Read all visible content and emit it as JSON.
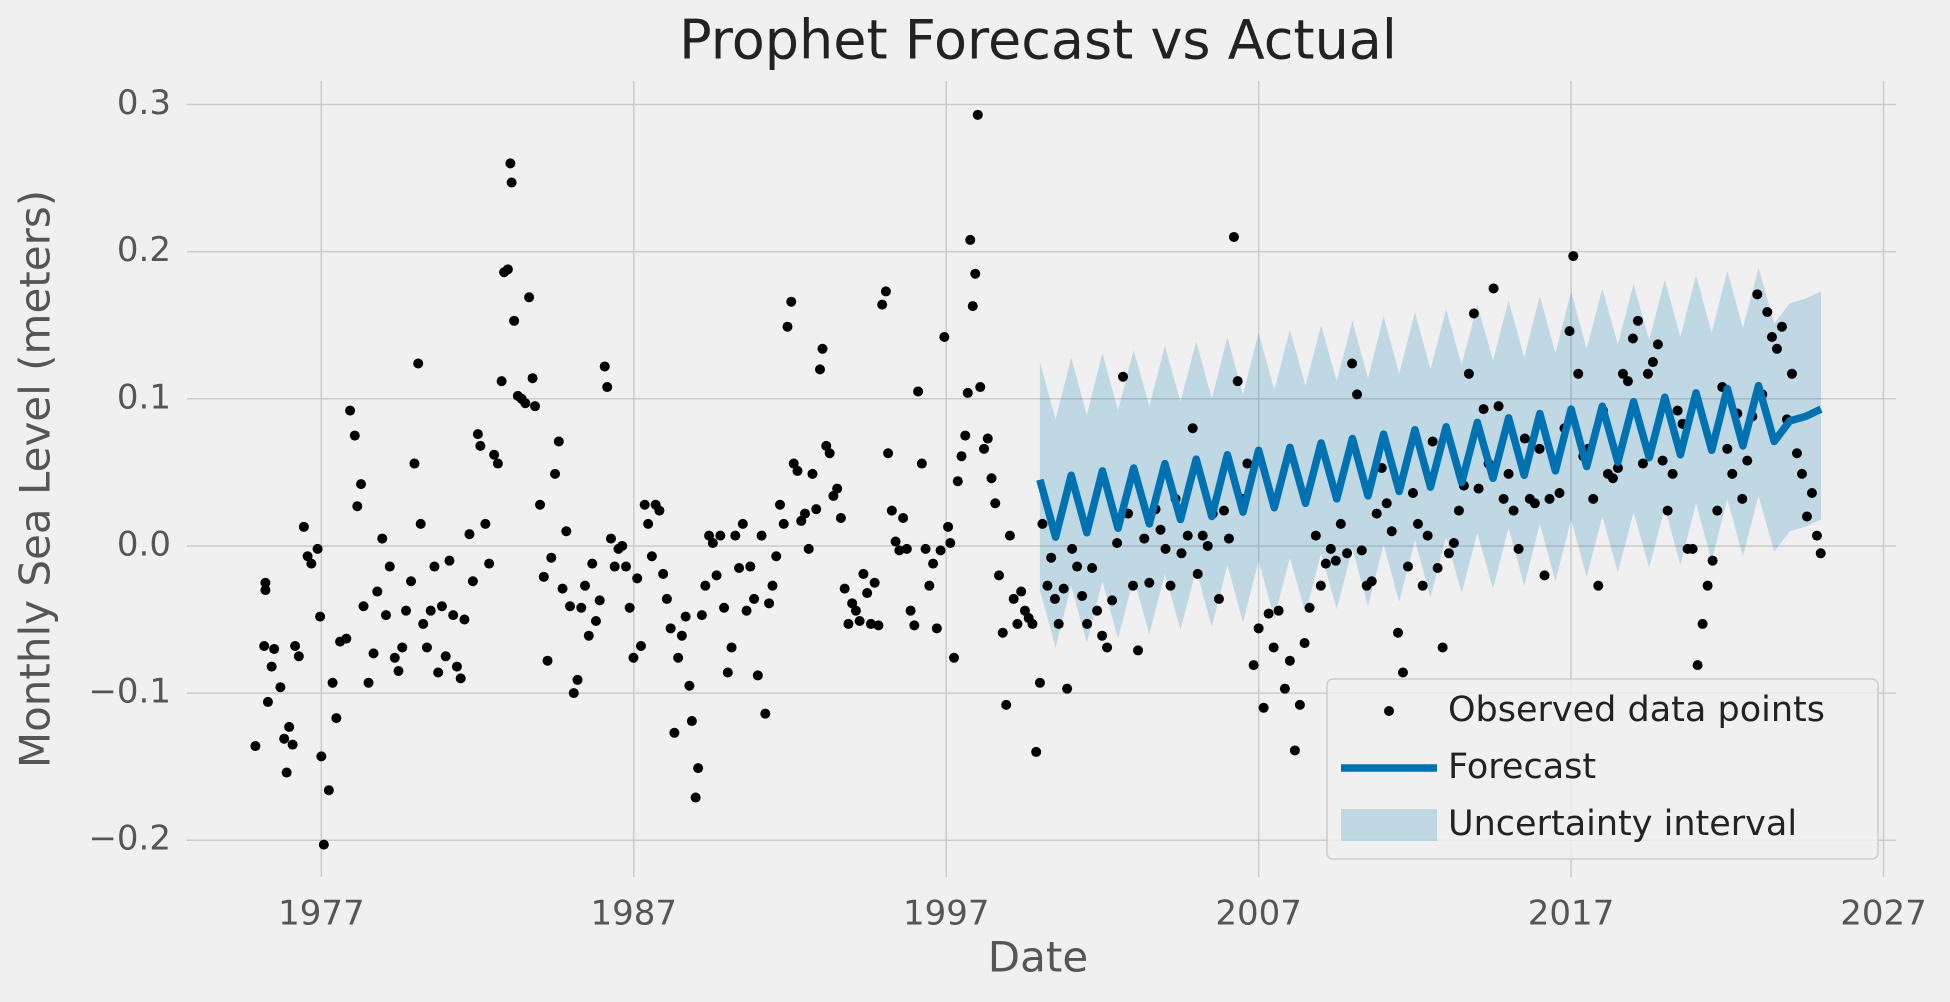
{
  "chart_data": {
    "type": "line",
    "title": "Prophet Forecast vs Actual",
    "x_label": "Date",
    "y_label": "Monthly Sea Level (meters)",
    "xlim": [
      1972.7,
      2027.4
    ],
    "ylim": [
      -0.225,
      0.316
    ],
    "xticks": [
      1977,
      1987,
      1997,
      2007,
      2017,
      2027
    ],
    "yticks": [
      {
        "value": -0.2,
        "label": "−0.2"
      },
      {
        "value": -0.1,
        "label": "−0.1"
      },
      {
        "value": 0,
        "label": "0.0"
      },
      0.1,
      0.2,
      0.3
    ],
    "grid": true,
    "legend": "lower right",
    "series": [
      {
        "name": "Observed data points",
        "style": "points",
        "color": "#000000",
        "x": [
          1974.89,
          1975.17,
          1975.21,
          1975.21,
          1975.29,
          1975.41,
          1975.49,
          1975.69,
          1975.81,
          1975.89,
          1975.97,
          1976.08,
          1976.16,
          1976.28,
          1976.44,
          1976.56,
          1976.68,
          1976.88,
          1976.96,
          1977.08,
          1977.0,
          1977.24,
          1977.36,
          1977.48,
          1977.6,
          1977.8,
          1977.92,
          1978.07,
          1978.15,
          1978.27,
          1978.35,
          1978.51,
          1978.67,
          1978.79,
          1978.95,
          1979.07,
          1979.19,
          1979.35,
          1979.47,
          1979.59,
          1979.71,
          1979.87,
          1979.98,
          1980.1,
          1980.18,
          1980.26,
          1980.38,
          1980.5,
          1980.62,
          1980.74,
          1980.86,
          1980.98,
          1981.1,
          1981.22,
          1981.34,
          1981.46,
          1981.58,
          1981.74,
          1981.85,
          1982.01,
          1982.09,
          1982.25,
          1982.37,
          1982.53,
          1982.65,
          1982.77,
          1982.85,
          1982.97,
          1983.05,
          1983.09,
          1983.17,
          1983.29,
          1983.41,
          1983.53,
          1983.65,
          1983.76,
          1983.84,
          1984.0,
          1984.12,
          1984.24,
          1984.36,
          1984.48,
          1984.6,
          1984.72,
          1984.84,
          1984.96,
          1985.08,
          1985.2,
          1985.32,
          1985.44,
          1985.56,
          1985.67,
          1985.79,
          1985.91,
          1986.07,
          1986.15,
          1986.27,
          1986.39,
          1986.51,
          1986.63,
          1986.75,
          1986.87,
          1986.99,
          1987.11,
          1987.23,
          1987.35,
          1987.46,
          1987.58,
          1987.7,
          1987.82,
          1987.94,
          1988.06,
          1988.18,
          1988.3,
          1988.42,
          1988.54,
          1988.66,
          1988.78,
          1988.86,
          1988.98,
          1989.06,
          1989.18,
          1989.29,
          1989.41,
          1989.53,
          1989.65,
          1989.77,
          1989.89,
          1990.01,
          1990.13,
          1990.25,
          1990.37,
          1990.49,
          1990.61,
          1990.73,
          1990.85,
          1990.97,
          1991.09,
          1991.21,
          1991.33,
          1991.44,
          1991.56,
          1991.68,
          1991.8,
          1991.92,
          1992.04,
          1992.12,
          1992.24,
          1992.36,
          1992.48,
          1992.6,
          1992.72,
          1992.84,
          1992.96,
          1993.04,
          1993.16,
          1993.27,
          1993.39,
          1993.51,
          1993.63,
          1993.75,
          1993.87,
          1993.99,
          1994.11,
          1994.23,
          1994.35,
          1994.47,
          1994.59,
          1994.71,
          1994.83,
          1994.95,
          1995.07,
          1995.14,
          1995.26,
          1995.38,
          1995.5,
          1995.62,
          1995.74,
          1995.86,
          1995.98,
          1996.1,
          1996.22,
          1996.34,
          1996.46,
          1996.58,
          1996.7,
          1996.82,
          1996.94,
          1997.06,
          1997.13,
          1997.25,
          1997.37,
          1997.49,
          1997.61,
          1997.69,
          1997.77,
          1997.85,
          1997.93,
          1998.01,
          1998.09,
          1998.21,
          1998.33,
          1998.45,
          1998.57,
          1998.69,
          1998.81,
          1998.92,
          1999.04,
          1999.16,
          1999.28,
          1999.4,
          1999.52,
          1999.64,
          1999.76,
          1999.88,
          2000.0,
          2000.08,
          2000.24,
          2000.36,
          2000.48,
          2000.6,
          2000.76,
          2000.87,
          2001.03,
          2001.19,
          2001.35,
          2001.51,
          2001.67,
          2001.83,
          2001.99,
          2002.15,
          2002.31,
          2002.47,
          2002.66,
          2002.82,
          2002.98,
          2003.14,
          2003.34,
          2003.5,
          2003.7,
          2003.86,
          2004.02,
          2004.18,
          2004.34,
          2004.53,
          2004.73,
          2004.89,
          2005.05,
          2005.21,
          2005.37,
          2005.53,
          2005.73,
          2005.89,
          2006.05,
          2006.21,
          2006.33,
          2006.49,
          2006.64,
          2006.84,
          2007.0,
          2007.16,
          2007.32,
          2007.48,
          2007.64,
          2007.84,
          2008.0,
          2008.16,
          2008.32,
          2008.47,
          2008.63,
          2008.83,
          2008.99,
          2009.15,
          2009.31,
          2009.47,
          2009.63,
          2009.83,
          2009.99,
          2010.15,
          2010.3,
          2010.46,
          2010.62,
          2010.78,
          2010.94,
          2011.1,
          2011.26,
          2011.46,
          2011.62,
          2011.78,
          2011.94,
          2012.1,
          2012.25,
          2012.41,
          2012.57,
          2012.73,
          2012.89,
          2013.09,
          2013.25,
          2013.41,
          2013.57,
          2013.73,
          2013.89,
          2014.04,
          2014.2,
          2014.36,
          2014.52,
          2014.68,
          2014.84,
          2015.0,
          2015.16,
          2015.32,
          2015.52,
          2015.68,
          2015.84,
          2015.99,
          2016.15,
          2016.31,
          2016.47,
          2016.63,
          2016.79,
          2016.95,
          2017.07,
          2017.23,
          2017.39,
          2017.55,
          2017.71,
          2017.87,
          2018.02,
          2018.18,
          2018.34,
          2018.5,
          2018.66,
          2018.82,
          2018.98,
          2019.14,
          2019.3,
          2019.46,
          2019.62,
          2019.78,
          2019.93,
          2020.09,
          2020.25,
          2020.41,
          2020.57,
          2020.73,
          2020.89,
          2021.05,
          2021.21,
          2021.37,
          2021.53,
          2021.68,
          2021.84,
          2022.0,
          2022.16,
          2022.32,
          2022.48,
          2022.64,
          2022.8,
          2022.96,
          2023.12,
          2023.28,
          2023.43,
          2023.59,
          2023.75,
          2023.91,
          2024.07,
          2024.23,
          2024.39,
          2024.55,
          2024.71,
          2024.87,
          2024.99
        ],
        "values": [
          -0.136,
          -0.068,
          -0.03,
          -0.025,
          -0.106,
          -0.082,
          -0.07,
          -0.096,
          -0.131,
          -0.154,
          -0.123,
          -0.135,
          -0.068,
          -0.075,
          0.013,
          -0.007,
          -0.012,
          -0.002,
          -0.048,
          -0.203,
          -0.143,
          -0.166,
          -0.093,
          -0.117,
          -0.065,
          -0.063,
          0.092,
          0.075,
          0.027,
          0.042,
          -0.041,
          -0.093,
          -0.073,
          -0.031,
          0.005,
          -0.047,
          -0.014,
          -0.076,
          -0.085,
          -0.069,
          -0.044,
          -0.024,
          0.056,
          0.124,
          0.015,
          -0.053,
          -0.069,
          -0.044,
          -0.014,
          -0.086,
          -0.041,
          -0.075,
          -0.01,
          -0.047,
          -0.082,
          -0.09,
          -0.05,
          0.008,
          -0.024,
          0.076,
          0.068,
          0.015,
          -0.012,
          0.062,
          0.056,
          0.112,
          0.186,
          0.188,
          0.26,
          0.247,
          0.153,
          0.102,
          0.1,
          0.097,
          0.169,
          0.114,
          0.095,
          0.028,
          -0.021,
          -0.078,
          -0.008,
          0.049,
          0.071,
          -0.029,
          0.01,
          -0.041,
          -0.1,
          -0.091,
          -0.042,
          -0.027,
          -0.061,
          -0.012,
          -0.051,
          -0.037,
          0.122,
          0.108,
          0.005,
          -0.014,
          -0.002,
          0.0,
          -0.014,
          -0.042,
          -0.076,
          -0.022,
          -0.068,
          0.028,
          0.015,
          -0.007,
          0.028,
          0.024,
          -0.019,
          -0.036,
          -0.056,
          -0.127,
          -0.076,
          -0.061,
          -0.048,
          -0.095,
          -0.119,
          -0.171,
          -0.151,
          -0.047,
          -0.027,
          0.007,
          0.002,
          -0.02,
          0.007,
          -0.042,
          -0.086,
          -0.069,
          0.007,
          -0.015,
          0.015,
          -0.044,
          -0.014,
          -0.036,
          -0.088,
          0.007,
          -0.114,
          -0.039,
          -0.027,
          -0.007,
          0.028,
          0.015,
          0.149,
          0.166,
          0.056,
          0.051,
          0.017,
          0.022,
          -0.002,
          0.049,
          0.025,
          0.12,
          0.134,
          0.068,
          0.063,
          0.034,
          0.039,
          0.019,
          -0.029,
          -0.053,
          -0.039,
          -0.044,
          -0.051,
          -0.019,
          -0.032,
          -0.053,
          -0.025,
          -0.054,
          0.164,
          0.173,
          0.063,
          0.024,
          0.003,
          -0.003,
          0.019,
          -0.002,
          -0.044,
          -0.054,
          0.105,
          0.056,
          -0.002,
          -0.027,
          -0.012,
          -0.056,
          -0.003,
          0.142,
          0.013,
          0.002,
          -0.076,
          0.044,
          0.061,
          0.075,
          0.104,
          0.208,
          0.163,
          0.185,
          0.293,
          0.108,
          0.066,
          0.073,
          0.046,
          0.029,
          -0.02,
          -0.059,
          -0.108,
          0.007,
          -0.036,
          -0.053,
          -0.031,
          -0.044,
          -0.049,
          -0.053,
          -0.14,
          -0.093,
          0.015,
          -0.027,
          -0.008,
          -0.036,
          -0.053,
          -0.029,
          -0.097,
          -0.002,
          -0.014,
          -0.034,
          -0.053,
          -0.015,
          -0.044,
          -0.061,
          -0.069,
          -0.037,
          0.002,
          0.115,
          0.022,
          -0.027,
          -0.071,
          0.005,
          -0.025,
          0.025,
          0.011,
          -0.002,
          -0.027,
          0.032,
          -0.005,
          0.007,
          0.08,
          -0.019,
          0.007,
          0.0,
          0.022,
          -0.036,
          0.024,
          0.005,
          0.21,
          0.112,
          0.032,
          0.056,
          -0.081,
          -0.056,
          -0.11,
          -0.046,
          -0.069,
          -0.044,
          -0.097,
          -0.078,
          -0.139,
          -0.108,
          -0.066,
          -0.042,
          0.007,
          -0.027,
          -0.012,
          -0.002,
          -0.01,
          0.015,
          -0.005,
          0.124,
          0.103,
          -0.003,
          -0.027,
          -0.024,
          0.022,
          0.053,
          0.029,
          0.01,
          -0.059,
          -0.086,
          -0.014,
          0.036,
          0.015,
          -0.027,
          0.007,
          0.071,
          -0.015,
          -0.069,
          -0.005,
          0.002,
          0.024,
          0.041,
          0.117,
          0.158,
          0.039,
          0.093,
          0.056,
          0.175,
          0.095,
          0.032,
          0.049,
          0.024,
          -0.002,
          0.073,
          0.032,
          0.029,
          0.066,
          -0.02,
          0.032,
          0.058,
          0.036,
          0.08,
          0.146,
          0.197,
          0.117,
          0.061,
          0.066,
          0.032,
          -0.027,
          0.092,
          0.049,
          0.046,
          0.053,
          0.117,
          0.112,
          0.141,
          0.153,
          0.056,
          0.117,
          0.125,
          0.137,
          0.058,
          0.024,
          0.049,
          0.092,
          0.083,
          -0.002,
          -0.002,
          -0.081,
          -0.053,
          -0.027,
          -0.01,
          0.024,
          0.108,
          0.066,
          0.049,
          0.09,
          0.032,
          0.058,
          0.088,
          0.171,
          0.103,
          0.159,
          0.142,
          0.134,
          0.149,
          0.086,
          0.117,
          0.063,
          0.049,
          0.02,
          0.036,
          0.007,
          -0.005
        ]
      },
      {
        "name": "Forecast",
        "style": "line",
        "color": "#0072B2",
        "x": [
          2000,
          2000.5,
          2001,
          2001.5,
          2002,
          2002.5,
          2003,
          2003.5,
          2004,
          2004.5,
          2005,
          2005.5,
          2006,
          2006.5,
          2007,
          2007.5,
          2008,
          2008.5,
          2009,
          2009.5,
          2010,
          2010.5,
          2011,
          2011.5,
          2012,
          2012.5,
          2013,
          2013.5,
          2014,
          2014.5,
          2015,
          2015.5,
          2016,
          2016.5,
          2017,
          2017.5,
          2018,
          2018.5,
          2019,
          2019.5,
          2020,
          2020.5,
          2021,
          2021.5,
          2022,
          2022.5,
          2023,
          2023.5,
          2024,
          2024.5,
          2025
        ],
        "values": [
          0.045,
          0.006,
          0.048,
          0.009,
          0.051,
          0.012,
          0.053,
          0.015,
          0.056,
          0.018,
          0.059,
          0.02,
          0.062,
          0.023,
          0.065,
          0.026,
          0.067,
          0.029,
          0.07,
          0.032,
          0.073,
          0.034,
          0.076,
          0.037,
          0.079,
          0.04,
          0.081,
          0.043,
          0.084,
          0.046,
          0.087,
          0.048,
          0.09,
          0.051,
          0.093,
          0.054,
          0.095,
          0.057,
          0.098,
          0.06,
          0.101,
          0.062,
          0.104,
          0.065,
          0.107,
          0.068,
          0.109,
          0.071,
          0.085,
          0.088,
          0.093
        ]
      },
      {
        "name": "Uncertainty interval",
        "style": "band",
        "color": "#0072B2",
        "x": [
          2000,
          2000.5,
          2001,
          2001.5,
          2002,
          2002.5,
          2003,
          2003.5,
          2004,
          2004.5,
          2005,
          2005.5,
          2006,
          2006.5,
          2007,
          2007.5,
          2008,
          2008.5,
          2009,
          2009.5,
          2010,
          2010.5,
          2011,
          2011.5,
          2012,
          2012.5,
          2013,
          2013.5,
          2014,
          2014.5,
          2015,
          2015.5,
          2016,
          2016.5,
          2017,
          2017.5,
          2018,
          2018.5,
          2019,
          2019.5,
          2020,
          2020.5,
          2021,
          2021.5,
          2022,
          2022.5,
          2023,
          2023.5,
          2024,
          2024.5,
          2025
        ],
        "lower": [
          -0.03,
          -0.069,
          -0.027,
          -0.066,
          -0.024,
          -0.063,
          -0.022,
          -0.06,
          -0.019,
          -0.057,
          -0.016,
          -0.055,
          -0.013,
          -0.052,
          -0.01,
          -0.049,
          -0.008,
          -0.046,
          -0.005,
          -0.043,
          -0.002,
          -0.041,
          0.001,
          -0.038,
          0.004,
          -0.035,
          0.006,
          -0.032,
          0.009,
          -0.029,
          0.012,
          -0.027,
          0.015,
          -0.024,
          0.018,
          -0.021,
          0.02,
          -0.018,
          0.023,
          -0.015,
          0.026,
          -0.013,
          0.029,
          -0.01,
          0.032,
          -0.007,
          0.034,
          -0.004,
          0.01,
          0.013,
          0.018
        ],
        "upper": [
          0.125,
          0.086,
          0.128,
          0.089,
          0.131,
          0.092,
          0.133,
          0.095,
          0.136,
          0.098,
          0.139,
          0.1,
          0.142,
          0.103,
          0.145,
          0.106,
          0.147,
          0.109,
          0.15,
          0.112,
          0.153,
          0.114,
          0.156,
          0.117,
          0.159,
          0.12,
          0.161,
          0.123,
          0.164,
          0.126,
          0.167,
          0.128,
          0.17,
          0.131,
          0.173,
          0.134,
          0.175,
          0.137,
          0.178,
          0.14,
          0.181,
          0.142,
          0.184,
          0.145,
          0.187,
          0.148,
          0.189,
          0.151,
          0.165,
          0.168,
          0.173
        ]
      }
    ]
  }
}
